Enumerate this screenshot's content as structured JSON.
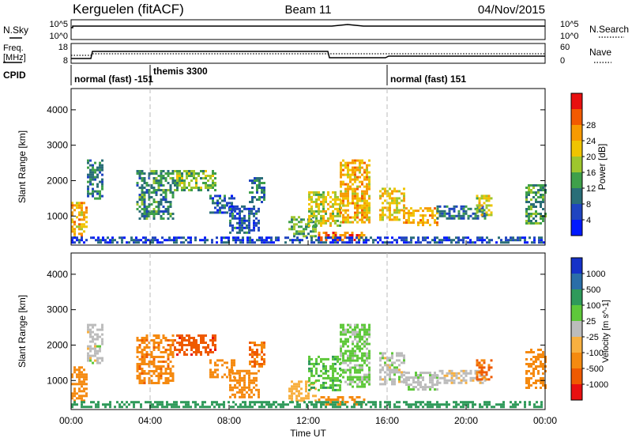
{
  "header": {
    "station": "Kerguelen (fitACF)",
    "beam": "Beam 11",
    "date": "04/Nov/2015"
  },
  "noise_panel": {
    "left_label": "N.Sky",
    "right_label": "N.Search",
    "left_ticks": [
      "10^5",
      "10^0"
    ],
    "right_ticks": [
      "10^5",
      "10^0"
    ]
  },
  "freq_panel": {
    "left_label_1": "Freq.",
    "left_label_2": "[MHz]",
    "right_label": "Nave",
    "left_ticks": [
      "18",
      "8"
    ],
    "right_ticks": [
      "60",
      "0"
    ]
  },
  "cpid_panel": {
    "label": "CPID",
    "modes": [
      {
        "name": "normal (fast) -151",
        "start_hour": 0,
        "end_hour": 4
      },
      {
        "name": "themis 3300",
        "start_hour": 4,
        "end_hour": 16
      },
      {
        "name": "normal (fast) 151",
        "start_hour": 16,
        "end_hour": 24
      }
    ]
  },
  "chart_data": [
    {
      "type": "heatmap",
      "panel": "power",
      "ylabel": "Slant Range [km]",
      "y_ticks": [
        "1000",
        "2000",
        "3000",
        "4000"
      ],
      "ylim": [
        180,
        4600
      ],
      "colorbar": {
        "title": "Power [dB]",
        "tick_labels": [
          "4",
          "8",
          "12",
          "16",
          "20",
          "24",
          "28"
        ],
        "colors": [
          "#0019ff",
          "#1f44c0",
          "#2a6e78",
          "#3fa04a",
          "#9ec62e",
          "#f0c400",
          "#f79a00",
          "#f25a00",
          "#e81010"
        ]
      },
      "echo_regions": [
        {
          "t_start": 0.0,
          "t_end": 0.8,
          "range_min": 400,
          "range_max": 1400,
          "level_db": 24
        },
        {
          "t_start": 0.8,
          "t_end": 1.6,
          "range_min": 1500,
          "range_max": 2600,
          "level_db": 10
        },
        {
          "t_start": 3.3,
          "t_end": 5.2,
          "range_min": 900,
          "range_max": 2300,
          "level_db": 12
        },
        {
          "t_start": 5.2,
          "t_end": 7.3,
          "range_min": 1700,
          "range_max": 2300,
          "level_db": 16
        },
        {
          "t_start": 7.0,
          "t_end": 8.3,
          "range_min": 1100,
          "range_max": 1600,
          "level_db": 8
        },
        {
          "t_start": 8.0,
          "t_end": 9.5,
          "range_min": 500,
          "range_max": 1300,
          "level_db": 8
        },
        {
          "t_start": 9.0,
          "t_end": 9.8,
          "range_min": 1400,
          "range_max": 2100,
          "level_db": 10
        },
        {
          "t_start": 11.0,
          "t_end": 12.4,
          "range_min": 400,
          "range_max": 1000,
          "level_db": 14
        },
        {
          "t_start": 12.5,
          "t_end": 14.8,
          "range_min": 300,
          "range_max": 560,
          "level_db": 28
        },
        {
          "t_start": 12.0,
          "t_end": 13.6,
          "range_min": 700,
          "range_max": 1700,
          "level_db": 20
        },
        {
          "t_start": 13.6,
          "t_end": 15.1,
          "range_min": 800,
          "range_max": 2600,
          "level_db": 24
        },
        {
          "t_start": 15.6,
          "t_end": 16.8,
          "range_min": 900,
          "range_max": 1800,
          "level_db": 22
        },
        {
          "t_start": 16.8,
          "t_end": 18.5,
          "range_min": 750,
          "range_max": 1250,
          "level_db": 24
        },
        {
          "t_start": 18.5,
          "t_end": 21.0,
          "range_min": 900,
          "range_max": 1300,
          "level_db": 10
        },
        {
          "t_start": 20.5,
          "t_end": 21.3,
          "range_min": 1000,
          "range_max": 1600,
          "level_db": 20
        },
        {
          "t_start": 23.0,
          "t_end": 24.0,
          "range_min": 800,
          "range_max": 1900,
          "level_db": 14
        },
        {
          "t_start": 0.0,
          "t_end": 24.0,
          "range_min": 220,
          "range_max": 420,
          "level_db": 6
        }
      ]
    },
    {
      "type": "heatmap",
      "panel": "velocity",
      "xlabel": "Time UT",
      "ylabel": "Slant Range [km]",
      "x_ticks": [
        "00:00",
        "04:00",
        "08:00",
        "12:00",
        "16:00",
        "20:00",
        "00:00"
      ],
      "y_ticks": [
        "1000",
        "2000",
        "3000",
        "4000"
      ],
      "xlim_hours": [
        0,
        24
      ],
      "ylim": [
        180,
        4600
      ],
      "colorbar": {
        "title": "Velocity [m s^-1]",
        "tick_labels": [
          "1000",
          "500",
          "100",
          "25",
          "-25",
          "-100",
          "-500",
          "-1000"
        ],
        "colors": [
          "#1532c8",
          "#2a6ea8",
          "#2f9a5a",
          "#5ec83a",
          "#bcbcbc",
          "#f8b040",
          "#f58a10",
          "#ef5a00",
          "#e81010"
        ]
      },
      "echo_regions": [
        {
          "t_start": 0.0,
          "t_end": 0.8,
          "range_min": 400,
          "range_max": 1400,
          "velocity": -300
        },
        {
          "t_start": 0.8,
          "t_end": 1.6,
          "range_min": 1500,
          "range_max": 2600,
          "velocity": 0
        },
        {
          "t_start": 3.3,
          "t_end": 5.2,
          "range_min": 900,
          "range_max": 2300,
          "velocity": -400
        },
        {
          "t_start": 5.2,
          "t_end": 7.3,
          "range_min": 1700,
          "range_max": 2300,
          "velocity": -800
        },
        {
          "t_start": 7.0,
          "t_end": 8.3,
          "range_min": 1100,
          "range_max": 1600,
          "velocity": -200
        },
        {
          "t_start": 8.0,
          "t_end": 9.5,
          "range_min": 500,
          "range_max": 1300,
          "velocity": -300
        },
        {
          "t_start": 9.0,
          "t_end": 9.8,
          "range_min": 1400,
          "range_max": 2100,
          "velocity": -500
        },
        {
          "t_start": 11.0,
          "t_end": 12.4,
          "range_min": 400,
          "range_max": 1000,
          "velocity": -60
        },
        {
          "t_start": 12.5,
          "t_end": 14.8,
          "range_min": 300,
          "range_max": 560,
          "velocity": -150
        },
        {
          "t_start": 12.0,
          "t_end": 13.6,
          "range_min": 700,
          "range_max": 1700,
          "velocity": 80
        },
        {
          "t_start": 13.6,
          "t_end": 15.1,
          "range_min": 800,
          "range_max": 2600,
          "velocity": 40
        },
        {
          "t_start": 15.6,
          "t_end": 16.8,
          "range_min": 900,
          "range_max": 1800,
          "velocity": 0
        },
        {
          "t_start": 16.8,
          "t_end": 18.5,
          "range_min": 750,
          "range_max": 1250,
          "velocity": 5
        },
        {
          "t_start": 18.5,
          "t_end": 21.0,
          "range_min": 900,
          "range_max": 1300,
          "velocity": -10
        },
        {
          "t_start": 20.5,
          "t_end": 21.3,
          "range_min": 1000,
          "range_max": 1600,
          "velocity": -600
        },
        {
          "t_start": 23.0,
          "t_end": 24.0,
          "range_min": 800,
          "range_max": 1900,
          "velocity": -350
        },
        {
          "t_start": 0.0,
          "t_end": 24.0,
          "range_min": 220,
          "range_max": 420,
          "velocity": 150
        }
      ]
    }
  ]
}
